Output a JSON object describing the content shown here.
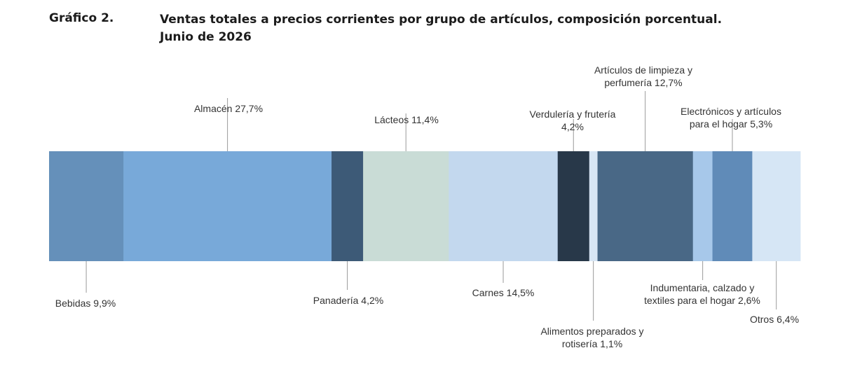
{
  "header": {
    "number": "Gráfico 2.",
    "title_line1": "Ventas totales a precios corrientes por grupo de artículos, composición porcentual.",
    "title_line2": "Junio de 2026"
  },
  "chart_data": {
    "type": "bar",
    "stacked": true,
    "orientation": "horizontal-100pct",
    "unit": "%",
    "categories": [
      "Bebidas",
      "Almacén",
      "Panadería",
      "Lácteos",
      "Carnes",
      "Verdulería y frutería",
      "Alimentos preparados y rotisería",
      "Artículos de limpieza y perfumería",
      "Indumentaria, calzado y textiles para el hogar",
      "Electrónicos y artículos para el hogar",
      "Otros"
    ],
    "values": [
      9.9,
      27.7,
      4.2,
      11.4,
      14.5,
      4.2,
      1.1,
      12.7,
      2.6,
      5.3,
      6.4
    ],
    "colors": [
      "#6590ba",
      "#78a9d9",
      "#3d5a77",
      "#c9dcd6",
      "#c3d8ee",
      "#283849",
      "#d8e6f4",
      "#496886",
      "#a7c8ea",
      "#608bb8",
      "#d6e6f5"
    ],
    "segment_labels": [
      {
        "lines": [
          "Bebidas 9,9%"
        ],
        "side": "below"
      },
      {
        "lines": [
          "Almacén 27,7%"
        ],
        "side": "above"
      },
      {
        "lines": [
          "Panadería 4,2%"
        ],
        "side": "below"
      },
      {
        "lines": [
          "Lácteos 11,4%"
        ],
        "side": "above"
      },
      {
        "lines": [
          "Carnes 14,5%"
        ],
        "side": "below"
      },
      {
        "lines": [
          "Verdulería y frutería",
          "4,2%"
        ],
        "side": "above"
      },
      {
        "lines": [
          "Alimentos preparados y",
          "rotisería 1,1%"
        ],
        "side": "below"
      },
      {
        "lines": [
          "Artículos de limpieza y",
          "perfumería 12,7%"
        ],
        "side": "above"
      },
      {
        "lines": [
          "Indumentaria, calzado y",
          "textiles para el hogar 2,6%"
        ],
        "side": "below"
      },
      {
        "lines": [
          "Electrónicos y artículos",
          "para el hogar 5,3%"
        ],
        "side": "above"
      },
      {
        "lines": [
          "Otros 6,4%"
        ],
        "side": "below"
      }
    ],
    "legend": "none",
    "grid": false
  }
}
